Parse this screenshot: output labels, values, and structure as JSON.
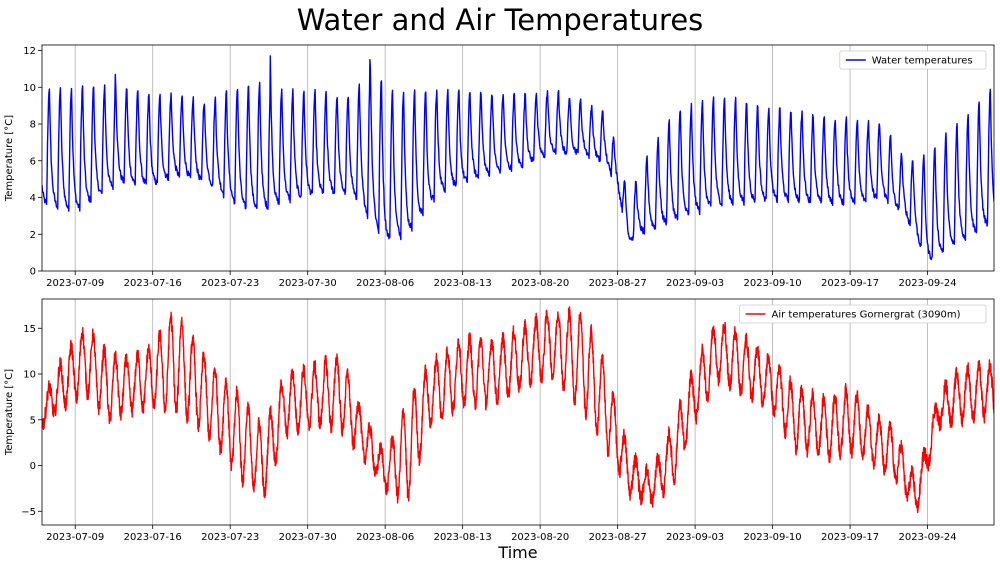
{
  "figure": {
    "title": "Water and Air Temperatures",
    "xlabel": "Time"
  },
  "chart_data": [
    {
      "type": "line",
      "title": "",
      "xlabel": "",
      "ylabel": "Temperature [°C]",
      "x_tick_labels": [
        "2023-07-09",
        "2023-07-16",
        "2023-07-23",
        "2023-07-30",
        "2023-08-06",
        "2023-08-13",
        "2023-08-20",
        "2023-08-27",
        "2023-09-03",
        "2023-09-10",
        "2023-09-17",
        "2023-09-24"
      ],
      "x_range": [
        "2023-07-06",
        "2023-09-30"
      ],
      "ylim": [
        0,
        12.3
      ],
      "y_ticks": [
        0,
        2,
        4,
        6,
        8,
        10,
        12
      ],
      "grid": "vertical lines at x ticks",
      "legend": "top-right",
      "series": [
        {
          "name": "Water temperatures",
          "color": "#0000ff",
          "x": [
            "2023-07-06",
            "2023-07-09",
            "2023-07-13",
            "2023-07-16",
            "2023-07-18",
            "2023-07-21",
            "2023-07-24",
            "2023-07-26",
            "2023-07-28",
            "2023-07-31",
            "2023-08-03",
            "2023-08-05",
            "2023-08-06",
            "2023-08-08",
            "2023-08-11",
            "2023-08-15",
            "2023-08-18",
            "2023-08-21",
            "2023-08-24",
            "2023-08-26",
            "2023-08-27",
            "2023-08-28",
            "2023-08-29",
            "2023-09-01",
            "2023-09-05",
            "2023-09-09",
            "2023-09-12",
            "2023-09-16",
            "2023-09-20",
            "2023-09-22",
            "2023-09-24",
            "2023-09-27",
            "2023-09-30"
          ],
          "daily_min": [
            3.6,
            3.2,
            4.8,
            4.6,
            5.2,
            4.8,
            3.4,
            3.3,
            3.8,
            4.2,
            4.2,
            2.5,
            1.6,
            2.0,
            4.3,
            5.2,
            5.6,
            6.4,
            6.4,
            5.8,
            4.6,
            1.6,
            2.0,
            2.7,
            3.6,
            3.8,
            3.8,
            3.6,
            4.0,
            3.0,
            0.5,
            1.6,
            2.7
          ],
          "daily_max": [
            10.0,
            10.0,
            10.1,
            9.5,
            9.6,
            9.2,
            10.1,
            10.2,
            9.8,
            9.7,
            9.4,
            11.4,
            9.8,
            9.9,
            9.8,
            9.7,
            9.6,
            9.8,
            9.2,
            8.6,
            6.6,
            3.8,
            5.5,
            8.6,
            9.5,
            9.0,
            8.7,
            8.3,
            8.0,
            6.0,
            6.4,
            8.2,
            10.0
          ],
          "peaks": [
            {
              "x": "2023-07-26",
              "y": 11.7
            },
            {
              "x": "2023-08-04",
              "y": 11.5
            },
            {
              "x": "2023-07-12",
              "y": 10.7
            }
          ]
        }
      ]
    },
    {
      "type": "line",
      "title": "",
      "xlabel": "Time",
      "ylabel": "Temperature [°C]",
      "x_tick_labels": [
        "2023-07-09",
        "2023-07-16",
        "2023-07-23",
        "2023-07-30",
        "2023-08-06",
        "2023-08-13",
        "2023-08-20",
        "2023-08-27",
        "2023-09-03",
        "2023-09-10",
        "2023-09-17",
        "2023-09-24"
      ],
      "x_range": [
        "2023-07-06",
        "2023-09-30"
      ],
      "ylim": [
        -6.5,
        18.2
      ],
      "y_ticks": [
        -5,
        0,
        5,
        10,
        15
      ],
      "grid": "vertical lines at x ticks",
      "legend": "top-right",
      "series": [
        {
          "name": "Air temperatures Gornergrat (3090m)",
          "color": "#ff0000",
          "x": [
            "2023-07-06",
            "2023-07-08",
            "2023-07-10",
            "2023-07-12",
            "2023-07-14",
            "2023-07-16",
            "2023-07-18",
            "2023-07-20",
            "2023-07-22",
            "2023-07-24",
            "2023-07-26",
            "2023-07-28",
            "2023-07-31",
            "2023-08-02",
            "2023-08-04",
            "2023-08-06",
            "2023-08-08",
            "2023-08-10",
            "2023-08-13",
            "2023-08-16",
            "2023-08-19",
            "2023-08-21",
            "2023-08-24",
            "2023-08-26",
            "2023-08-28",
            "2023-08-30",
            "2023-09-01",
            "2023-09-03",
            "2023-09-05",
            "2023-09-08",
            "2023-09-10",
            "2023-09-12",
            "2023-09-15",
            "2023-09-17",
            "2023-09-19",
            "2023-09-21",
            "2023-09-23",
            "2023-09-25",
            "2023-09-27",
            "2023-09-30"
          ],
          "daily_min": [
            4.5,
            6.5,
            8.0,
            5.0,
            6.0,
            6.5,
            6.0,
            4.5,
            2.0,
            -1.5,
            -3.5,
            3.5,
            4.5,
            4.0,
            1.0,
            -2.5,
            -4.0,
            4.5,
            6.5,
            7.0,
            9.0,
            10.0,
            6.0,
            2.0,
            -3.0,
            -4.0,
            -2.0,
            5.0,
            9.5,
            7.5,
            6.0,
            2.0,
            1.0,
            1.5,
            0.5,
            -1.5,
            -5.0,
            4.5,
            5.0,
            5.5
          ],
          "daily_max": [
            7.0,
            12.0,
            15.2,
            12.0,
            11.5,
            13.0,
            17.0,
            13.0,
            10.0,
            7.5,
            4.0,
            10.0,
            11.0,
            12.0,
            5.5,
            1.0,
            7.0,
            11.0,
            14.0,
            13.5,
            15.5,
            16.8,
            16.5,
            10.5,
            1.5,
            -1.0,
            4.5,
            11.0,
            15.8,
            13.5,
            11.5,
            8.5,
            7.0,
            8.5,
            5.5,
            4.0,
            -2.0,
            8.0,
            10.5,
            11.0
          ]
        }
      ]
    }
  ]
}
